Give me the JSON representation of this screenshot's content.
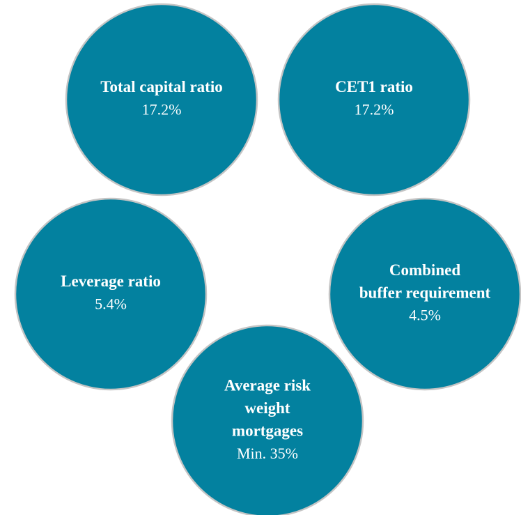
{
  "nodes": [
    {
      "label": [
        "Total capital ratio"
      ],
      "value": "17.2%"
    },
    {
      "label": [
        "CET1 ratio"
      ],
      "value": "17.2%"
    },
    {
      "label": [
        "Leverage ratio"
      ],
      "value": "5.4%"
    },
    {
      "label": [
        "Combined",
        "buffer requirement"
      ],
      "value": "4.5%"
    },
    {
      "label": [
        "Average risk",
        "weight",
        "mortgages"
      ],
      "value": "Min. 35%"
    }
  ]
}
